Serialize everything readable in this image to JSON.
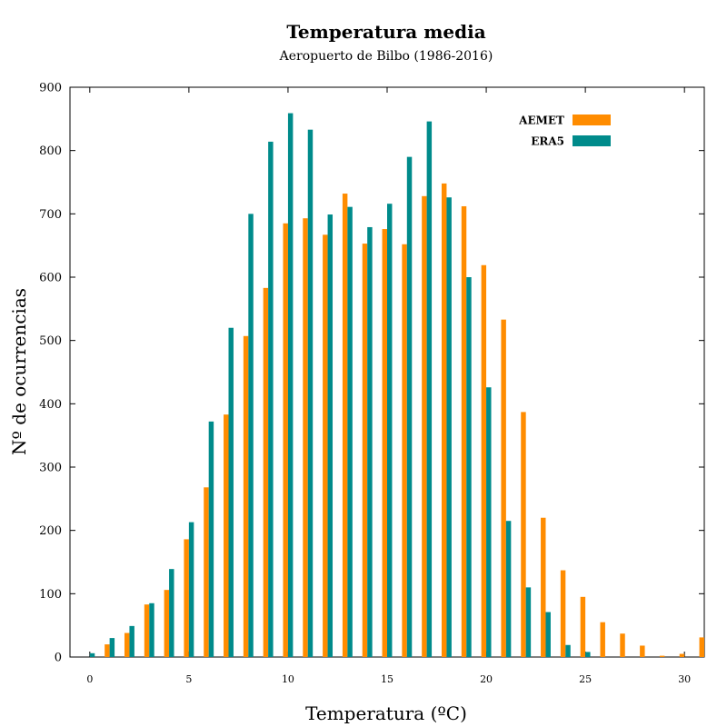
{
  "chart_data": {
    "type": "bar",
    "title": "Temperatura media",
    "subtitle": "Aeropuerto de Bilbo (1986-2016)",
    "xlabel": "Temperatura (ºC)",
    "ylabel": "Nº de ocurrencias",
    "xlim": [
      -1,
      31
    ],
    "ylim": [
      0,
      900
    ],
    "xticks": [
      0,
      5,
      10,
      15,
      20,
      25,
      30
    ],
    "yticks": [
      0,
      100,
      200,
      300,
      400,
      500,
      600,
      700,
      800,
      900
    ],
    "legend_position": "top-right",
    "x": [
      0,
      1,
      2,
      3,
      4,
      5,
      6,
      7,
      8,
      9,
      10,
      11,
      12,
      13,
      14,
      15,
      16,
      17,
      18,
      19,
      20,
      21,
      22,
      23,
      24,
      25,
      26,
      27,
      28,
      29,
      30,
      31
    ],
    "series": [
      {
        "name": "AEMET",
        "color": "#ff8c00",
        "values": [
          0,
          20,
          38,
          83,
          106,
          186,
          268,
          383,
          507,
          583,
          685,
          693,
          667,
          732,
          653,
          676,
          652,
          728,
          748,
          712,
          619,
          533,
          387,
          220,
          137,
          95,
          55,
          37,
          18,
          2,
          5,
          31
        ]
      },
      {
        "name": "ERA5",
        "color": "#008b8b",
        "values": [
          6,
          30,
          49,
          85,
          139,
          213,
          372,
          520,
          700,
          814,
          859,
          833,
          699,
          711,
          679,
          716,
          790,
          846,
          726,
          600,
          426,
          215,
          110,
          71,
          19,
          8,
          0,
          0,
          0,
          0,
          0,
          0
        ]
      }
    ]
  }
}
